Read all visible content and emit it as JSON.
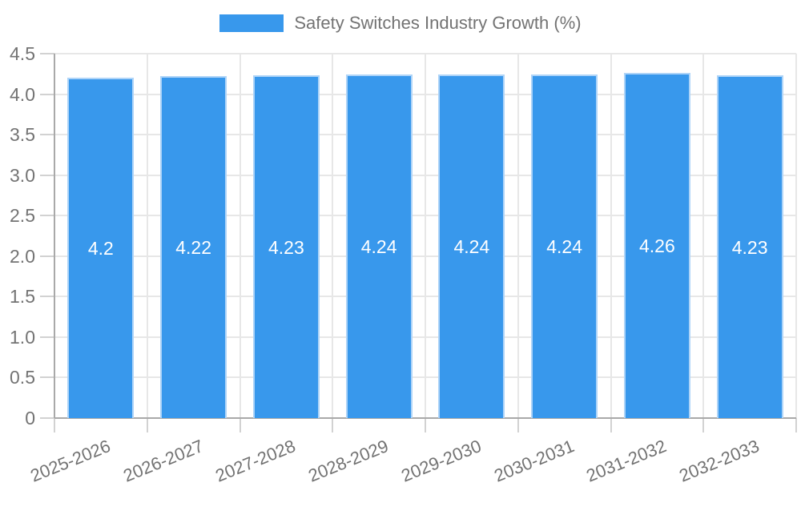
{
  "legend": {
    "label": "Safety Switches Industry Growth (%)"
  },
  "chart_data": {
    "type": "bar",
    "title": "",
    "legend_label": "Safety Switches Industry Growth (%)",
    "legend_position": "top",
    "categories": [
      "2025-2026",
      "2026-2027",
      "2027-2028",
      "2028-2029",
      "2029-2030",
      "2030-2031",
      "2031-2032",
      "2032-2033"
    ],
    "values": [
      4.2,
      4.22,
      4.23,
      4.24,
      4.24,
      4.24,
      4.26,
      4.23
    ],
    "value_labels": [
      "4.2",
      "4.22",
      "4.23",
      "4.24",
      "4.24",
      "4.24",
      "4.26",
      "4.23"
    ],
    "xlabel": "",
    "ylabel": "",
    "ylim": [
      0,
      4.5
    ],
    "ytick_step": 0.5,
    "ytick_labels": [
      "0",
      "0.5",
      "1.0",
      "1.5",
      "2.0",
      "2.5",
      "3.0",
      "3.5",
      "4.0",
      "4.5"
    ],
    "grid": true,
    "value_label_position": "center-inside",
    "colors": {
      "bar_fill": "#3898ec",
      "bar_border": "#aed4f8",
      "grid_line": "#e7e7e7",
      "tick_mark": "#d2d2d2",
      "axis_line": "#a9a9a9",
      "tick_text": "#737373",
      "value_text": "#ffffff"
    }
  }
}
